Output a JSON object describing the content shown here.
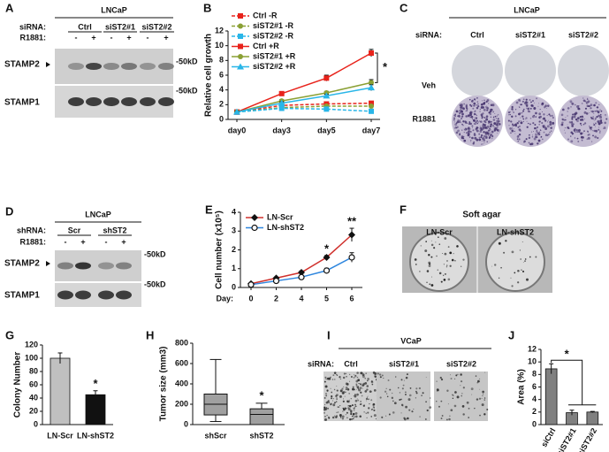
{
  "chart_data": [
    {
      "type": "line",
      "panel": "B",
      "ylabel": "Relative cell growth",
      "categories": [
        "day0",
        "day3",
        "day5",
        "day7"
      ],
      "ylim": [
        0,
        12
      ],
      "yticks": [
        0,
        2,
        4,
        6,
        8,
        10,
        12
      ],
      "annotation": "*",
      "series": [
        {
          "name": "Ctrl -R",
          "color": "#e8231b",
          "marker": "square",
          "dash": true,
          "values": [
            1,
            1.9,
            2.1,
            2.2
          ]
        },
        {
          "name": "siST2#1 -R",
          "color": "#8aa034",
          "marker": "circle",
          "dash": true,
          "values": [
            1,
            1.6,
            1.8,
            1.8
          ]
        },
        {
          "name": "siST2#2 -R",
          "color": "#29b6e8",
          "marker": "square",
          "dash": true,
          "values": [
            1,
            1.5,
            1.4,
            1.1
          ]
        },
        {
          "name": "Ctrl +R",
          "color": "#e8231b",
          "marker": "square",
          "dash": false,
          "values": [
            1,
            3.5,
            5.6,
            9
          ],
          "errors": [
            0.1,
            0.2,
            0.4,
            0.5
          ]
        },
        {
          "name": "siST2#1 +R",
          "color": "#8aa034",
          "marker": "circle",
          "dash": false,
          "values": [
            1,
            2.5,
            3.6,
            5
          ],
          "errors": [
            0.1,
            0.2,
            0.2,
            0.4
          ]
        },
        {
          "name": "siST2#2 +R",
          "color": "#29b6e8",
          "marker": "triangle",
          "dash": false,
          "values": [
            1,
            2.2,
            3.2,
            4.3
          ],
          "errors": [
            0.1,
            0.2,
            0.2,
            0.4
          ]
        }
      ]
    },
    {
      "type": "line",
      "panel": "E",
      "ylabel": "Cell number (x10⁵)",
      "xlabel": "Day:",
      "categories": [
        "0",
        "2",
        "4",
        "5",
        "6"
      ],
      "ylim": [
        0,
        4
      ],
      "yticks": [
        0,
        1,
        2,
        3,
        4
      ],
      "annotations": [
        "*",
        "**"
      ],
      "series": [
        {
          "name": "LN-Scr",
          "color": "#111111",
          "line_color": "#d0312d",
          "marker": "diamond",
          "values": [
            0.2,
            0.5,
            0.8,
            1.6,
            2.8
          ],
          "errors": [
            0.05,
            0.05,
            0.08,
            0.1,
            0.35
          ]
        },
        {
          "name": "LN-shST2",
          "color": "#111111",
          "line_color": "#2e86de",
          "marker": "open-circle",
          "values": [
            0.15,
            0.35,
            0.55,
            0.9,
            1.6
          ],
          "errors": [
            0.05,
            0.05,
            0.05,
            0.12,
            0.25
          ]
        }
      ]
    },
    {
      "type": "bar",
      "panel": "G",
      "ylabel": "Colony Number",
      "categories": [
        "LN-Scr",
        "LN-shST2"
      ],
      "values": [
        100,
        45
      ],
      "errors": [
        8,
        6
      ],
      "colors": [
        "#c0c0c0",
        "#111111"
      ],
      "ylim": [
        0,
        120
      ],
      "yticks": [
        0,
        20,
        40,
        60,
        80,
        100,
        120
      ],
      "annotation": "*"
    },
    {
      "type": "box",
      "panel": "H",
      "ylabel": "Tumor size (mm3)",
      "categories": [
        "shScr",
        "shST2"
      ],
      "stats": [
        {
          "min": 30,
          "q1": 95,
          "median": 200,
          "q3": 300,
          "max": 640
        },
        {
          "min": 0,
          "q1": 0,
          "median": 100,
          "q3": 155,
          "max": 210
        }
      ],
      "color": "#a0a0a0",
      "ylim": [
        0,
        800
      ],
      "yticks": [
        0,
        200,
        400,
        600,
        800
      ],
      "annotation": "*"
    },
    {
      "type": "bar",
      "panel": "J",
      "ylabel": "Area (%)",
      "categories": [
        "siCtrl",
        "siST2#1",
        "siST2#2"
      ],
      "values": [
        8.9,
        1.9,
        2.0
      ],
      "errors": [
        0.8,
        0.4,
        0.1
      ],
      "color": "#808080",
      "ylim": [
        0,
        12
      ],
      "yticks": [
        0,
        2,
        4,
        6,
        8,
        10,
        12
      ],
      "annotation": "*",
      "rotate_labels": true
    }
  ],
  "panels": {
    "A": {
      "panel": "A",
      "cell": "LNCaP",
      "group_label": "siRNA:",
      "groups": [
        "Ctrl",
        "siST2#1",
        "siST2#2"
      ],
      "treatment_label": "R1881:",
      "treatments": [
        "-",
        "+",
        "-",
        "+",
        "-",
        "+"
      ],
      "bands": [
        "STAMP2",
        "STAMP1"
      ],
      "markers": [
        "-50kD",
        "-50kD"
      ]
    },
    "C": {
      "panel": "C",
      "cell": "LNCaP",
      "group_label": "siRNA:",
      "groups": [
        "Ctrl",
        "siST2#1",
        "siST2#2"
      ],
      "rows": [
        "Veh",
        "R1881"
      ]
    },
    "D": {
      "panel": "D",
      "cell": "LNCaP",
      "group_label": "shRNA:",
      "groups": [
        "Scr",
        "shST2"
      ],
      "treatment_label": "R1881:",
      "treatments": [
        "-",
        "+",
        "-",
        "+"
      ],
      "bands": [
        "STAMP2",
        "STAMP1"
      ],
      "markers": [
        "-50kD",
        "-50kD"
      ]
    },
    "F": {
      "panel": "F",
      "title": "Soft agar",
      "groups": [
        "LN-Scr",
        "LN-shST2"
      ]
    },
    "I": {
      "panel": "I",
      "cell": "VCaP",
      "group_label": "siRNA:",
      "groups": [
        "Ctrl",
        "siST2#1",
        "siST2#2"
      ]
    }
  }
}
